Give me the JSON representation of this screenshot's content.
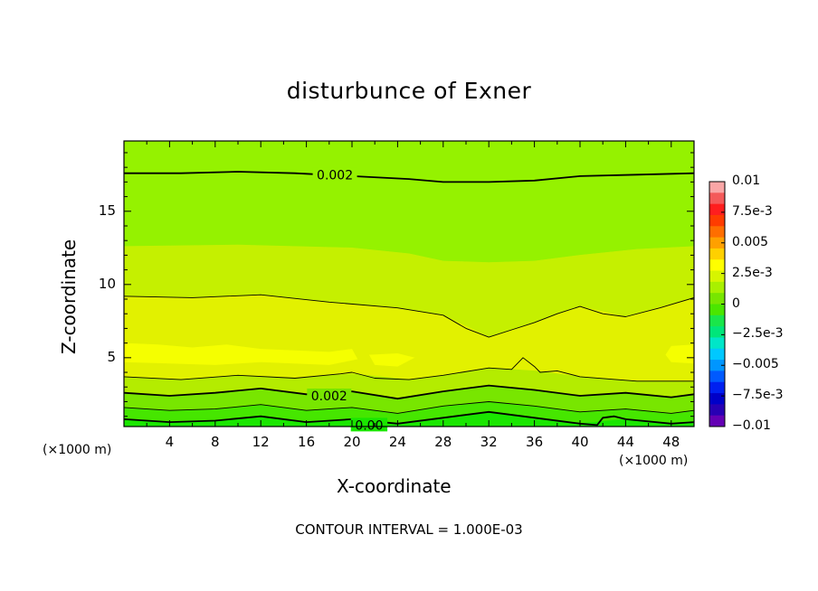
{
  "chart_data": {
    "type": "heatmap",
    "subtype": "filled-contour",
    "title": "disturbunce of Exner",
    "xlabel": "X-coordinate",
    "ylabel": "Z-coordinate",
    "x_unit_label": "(×1000 m)",
    "xlim": [
      0,
      50
    ],
    "ylim": [
      0.3,
      19.8
    ],
    "xticks": [
      "4",
      "8",
      "12",
      "16",
      "20",
      "24",
      "28",
      "32",
      "36",
      "40",
      "44",
      "48"
    ],
    "xtick_values": [
      4,
      8,
      12,
      16,
      20,
      24,
      28,
      32,
      36,
      40,
      44,
      48
    ],
    "yticks": [
      "5",
      "10",
      "15"
    ],
    "ytick_values": [
      5,
      10,
      15
    ],
    "contour_interval_text": "CONTOUR INTERVAL = 1.000E-03",
    "contour_labels": [
      {
        "text": "0.002",
        "x": 18.5,
        "z": 17.5
      },
      {
        "text": "0.002",
        "x": 18,
        "z": 2.4
      },
      {
        "text": "0.00",
        "x": 21.5,
        "z": 0.4
      }
    ],
    "colorbar": {
      "min": -0.01,
      "max": 0.01,
      "labels": [
        "0.01",
        "7.5e-3",
        "0.005",
        "2.5e-3",
        "0",
        "−2.5e-3",
        "−0.005",
        "−7.5e-3",
        "−0.01"
      ],
      "colors": [
        "#f9a6a6",
        "#f45a5a",
        "#ff1e1e",
        "#ff3c00",
        "#ff6e00",
        "#ffa000",
        "#ffd000",
        "#ffff00",
        "#d7f500",
        "#a9f000",
        "#78e600",
        "#4be600",
        "#1ae64a",
        "#00e67a",
        "#00e6c8",
        "#00c8ff",
        "#0096ff",
        "#005aff",
        "#0020f0",
        "#0000c8",
        "#2800b4",
        "#6400b4"
      ]
    },
    "bands": [
      {
        "color": "#95f200",
        "top": [
          [
            0,
            19.8
          ],
          [
            50,
            19.8
          ]
        ],
        "bottom": [
          [
            0,
            12.6
          ],
          [
            10,
            12.7
          ],
          [
            20,
            12.5
          ],
          [
            25,
            12.1
          ],
          [
            28,
            11.6
          ],
          [
            32,
            11.5
          ],
          [
            36,
            11.6
          ],
          [
            40,
            12.0
          ],
          [
            45,
            12.4
          ],
          [
            50,
            12.6
          ]
        ]
      },
      {
        "color": "#c5f000",
        "top": [
          [
            0,
            12.6
          ],
          [
            10,
            12.7
          ],
          [
            20,
            12.5
          ],
          [
            25,
            12.1
          ],
          [
            28,
            11.6
          ],
          [
            32,
            11.5
          ],
          [
            36,
            11.6
          ],
          [
            40,
            12.0
          ],
          [
            45,
            12.4
          ],
          [
            50,
            12.6
          ]
        ],
        "bottom": [
          [
            0,
            9.2
          ],
          [
            6,
            9.1
          ],
          [
            12,
            9.3
          ],
          [
            18,
            8.8
          ],
          [
            24,
            8.4
          ],
          [
            28,
            7.9
          ],
          [
            32,
            6.4
          ],
          [
            36,
            7.4
          ],
          [
            40,
            8.5
          ],
          [
            44,
            7.8
          ],
          [
            50,
            9.1
          ]
        ]
      },
      {
        "color": "#e2f100",
        "top": [
          [
            0,
            9.2
          ],
          [
            6,
            9.1
          ],
          [
            12,
            9.3
          ],
          [
            18,
            8.8
          ],
          [
            24,
            8.4
          ],
          [
            28,
            7.9
          ],
          [
            32,
            6.4
          ],
          [
            36,
            7.4
          ],
          [
            40,
            8.5
          ],
          [
            44,
            7.8
          ],
          [
            50,
            9.1
          ]
        ],
        "bottom": [
          [
            0,
            3.7
          ],
          [
            5,
            3.5
          ],
          [
            10,
            3.8
          ],
          [
            15,
            3.6
          ],
          [
            20,
            3.9
          ],
          [
            25,
            3.5
          ],
          [
            28,
            3.8
          ],
          [
            32,
            4.3
          ],
          [
            36,
            4.1
          ],
          [
            40,
            3.7
          ],
          [
            45,
            3.4
          ],
          [
            50,
            3.4
          ]
        ]
      },
      {
        "color": "#b4ec00",
        "top": [
          [
            0,
            3.7
          ],
          [
            5,
            3.5
          ],
          [
            10,
            3.8
          ],
          [
            15,
            3.6
          ],
          [
            20,
            3.9
          ],
          [
            25,
            3.5
          ],
          [
            28,
            3.8
          ],
          [
            32,
            4.3
          ],
          [
            36,
            4.1
          ],
          [
            40,
            3.7
          ],
          [
            45,
            3.4
          ],
          [
            50,
            3.4
          ]
        ],
        "bottom": [
          [
            0,
            2.6
          ],
          [
            4,
            2.4
          ],
          [
            8,
            2.6
          ],
          [
            12,
            2.9
          ],
          [
            16,
            2.5
          ],
          [
            20,
            2.7
          ],
          [
            24,
            2.2
          ],
          [
            28,
            2.7
          ],
          [
            32,
            3.1
          ],
          [
            36,
            2.8
          ],
          [
            40,
            2.4
          ],
          [
            44,
            2.6
          ],
          [
            48,
            2.3
          ],
          [
            50,
            2.5
          ]
        ]
      },
      {
        "color": "#78e600",
        "top": [
          [
            0,
            2.6
          ],
          [
            4,
            2.4
          ],
          [
            8,
            2.6
          ],
          [
            12,
            2.9
          ],
          [
            16,
            2.5
          ],
          [
            20,
            2.7
          ],
          [
            24,
            2.2
          ],
          [
            28,
            2.7
          ],
          [
            32,
            3.1
          ],
          [
            36,
            2.8
          ],
          [
            40,
            2.4
          ],
          [
            44,
            2.6
          ],
          [
            48,
            2.3
          ],
          [
            50,
            2.5
          ]
        ],
        "bottom": [
          [
            0,
            1.6
          ],
          [
            4,
            1.4
          ],
          [
            8,
            1.5
          ],
          [
            12,
            1.8
          ],
          [
            16,
            1.4
          ],
          [
            20,
            1.6
          ],
          [
            24,
            1.2
          ],
          [
            28,
            1.7
          ],
          [
            32,
            2.0
          ],
          [
            36,
            1.7
          ],
          [
            40,
            1.3
          ],
          [
            44,
            1.5
          ],
          [
            48,
            1.2
          ],
          [
            50,
            1.4
          ]
        ]
      },
      {
        "color": "#46e600",
        "top": [
          [
            0,
            1.6
          ],
          [
            4,
            1.4
          ],
          [
            8,
            1.5
          ],
          [
            12,
            1.8
          ],
          [
            16,
            1.4
          ],
          [
            20,
            1.6
          ],
          [
            24,
            1.2
          ],
          [
            28,
            1.7
          ],
          [
            32,
            2.0
          ],
          [
            36,
            1.7
          ],
          [
            40,
            1.3
          ],
          [
            44,
            1.5
          ],
          [
            48,
            1.2
          ],
          [
            50,
            1.4
          ]
        ],
        "bottom": [
          [
            0,
            0.8
          ],
          [
            4,
            0.6
          ],
          [
            8,
            0.7
          ],
          [
            12,
            1.0
          ],
          [
            16,
            0.6
          ],
          [
            20,
            0.8
          ],
          [
            24,
            0.5
          ],
          [
            28,
            0.9
          ],
          [
            32,
            1.3
          ],
          [
            36,
            0.9
          ],
          [
            40,
            0.5
          ],
          [
            44,
            0.8
          ],
          [
            48,
            0.5
          ],
          [
            50,
            0.6
          ]
        ]
      },
      {
        "color": "#1ae600",
        "top": [
          [
            0,
            0.8
          ],
          [
            4,
            0.6
          ],
          [
            8,
            0.7
          ],
          [
            12,
            1.0
          ],
          [
            16,
            0.6
          ],
          [
            20,
            0.8
          ],
          [
            24,
            0.5
          ],
          [
            28,
            0.9
          ],
          [
            32,
            1.3
          ],
          [
            36,
            0.9
          ],
          [
            40,
            0.5
          ],
          [
            44,
            0.8
          ],
          [
            48,
            0.5
          ],
          [
            50,
            0.6
          ]
        ],
        "bottom": [
          [
            0,
            0.3
          ],
          [
            50,
            0.3
          ]
        ]
      }
    ],
    "yellow_patches": [
      {
        "color": "#f5ff00",
        "points": [
          [
            0,
            6.0
          ],
          [
            3,
            5.9
          ],
          [
            6,
            5.7
          ],
          [
            9,
            5.9
          ],
          [
            12,
            5.6
          ],
          [
            18,
            5.4
          ],
          [
            20,
            5.6
          ],
          [
            20.5,
            4.9
          ],
          [
            18,
            4.5
          ],
          [
            12,
            4.7
          ],
          [
            8,
            4.5
          ],
          [
            4,
            4.6
          ],
          [
            0,
            4.7
          ]
        ]
      },
      {
        "color": "#f5ff00",
        "points": [
          [
            21.5,
            5.2
          ],
          [
            24,
            5.3
          ],
          [
            25.5,
            5.0
          ],
          [
            24,
            4.4
          ],
          [
            22,
            4.5
          ]
        ]
      },
      {
        "color": "#f5ff00",
        "points": [
          [
            48,
            5.8
          ],
          [
            50,
            5.9
          ],
          [
            50,
            4.6
          ],
          [
            48,
            4.7
          ],
          [
            47.5,
            5.2
          ]
        ]
      }
    ],
    "contour_lines": [
      {
        "weight": "thick",
        "points": [
          [
            0,
            17.6
          ],
          [
            5,
            17.6
          ],
          [
            10,
            17.7
          ],
          [
            15,
            17.6
          ],
          [
            20,
            17.4
          ],
          [
            25,
            17.2
          ],
          [
            28,
            17.0
          ],
          [
            32,
            17.0
          ],
          [
            36,
            17.1
          ],
          [
            40,
            17.4
          ],
          [
            45,
            17.5
          ],
          [
            50,
            17.6
          ]
        ]
      },
      {
        "weight": "thin",
        "points": [
          [
            0,
            9.2
          ],
          [
            6,
            9.1
          ],
          [
            12,
            9.3
          ],
          [
            18,
            8.8
          ],
          [
            24,
            8.4
          ],
          [
            28,
            7.9
          ],
          [
            30,
            7.0
          ],
          [
            32,
            6.4
          ],
          [
            34,
            6.9
          ],
          [
            36,
            7.4
          ],
          [
            38,
            8.0
          ],
          [
            40,
            8.5
          ],
          [
            42,
            8.0
          ],
          [
            44,
            7.8
          ],
          [
            47,
            8.4
          ],
          [
            50,
            9.1
          ]
        ]
      },
      {
        "weight": "thin",
        "points": [
          [
            0,
            3.7
          ],
          [
            5,
            3.5
          ],
          [
            10,
            3.8
          ],
          [
            15,
            3.6
          ],
          [
            19,
            3.9
          ],
          [
            20,
            4.0
          ],
          [
            22,
            3.6
          ],
          [
            25,
            3.5
          ],
          [
            28,
            3.8
          ],
          [
            32,
            4.3
          ],
          [
            34,
            4.2
          ],
          [
            35,
            5.0
          ],
          [
            36,
            4.4
          ],
          [
            36.5,
            4.0
          ],
          [
            38,
            4.1
          ],
          [
            40,
            3.7
          ],
          [
            45,
            3.4
          ],
          [
            50,
            3.4
          ]
        ]
      },
      {
        "weight": "thick",
        "points": [
          [
            0,
            2.6
          ],
          [
            4,
            2.4
          ],
          [
            8,
            2.6
          ],
          [
            12,
            2.9
          ],
          [
            16,
            2.5
          ],
          [
            20,
            2.7
          ],
          [
            24,
            2.2
          ],
          [
            28,
            2.7
          ],
          [
            32,
            3.1
          ],
          [
            36,
            2.8
          ],
          [
            40,
            2.4
          ],
          [
            44,
            2.6
          ],
          [
            48,
            2.3
          ],
          [
            50,
            2.5
          ]
        ]
      },
      {
        "weight": "thin",
        "points": [
          [
            0,
            1.6
          ],
          [
            4,
            1.4
          ],
          [
            8,
            1.5
          ],
          [
            12,
            1.8
          ],
          [
            16,
            1.4
          ],
          [
            20,
            1.6
          ],
          [
            24,
            1.2
          ],
          [
            28,
            1.7
          ],
          [
            32,
            2.0
          ],
          [
            36,
            1.7
          ],
          [
            40,
            1.3
          ],
          [
            44,
            1.5
          ],
          [
            48,
            1.2
          ],
          [
            50,
            1.4
          ]
        ]
      },
      {
        "weight": "thick",
        "points": [
          [
            0,
            0.8
          ],
          [
            4,
            0.6
          ],
          [
            8,
            0.7
          ],
          [
            12,
            1.0
          ],
          [
            16,
            0.6
          ],
          [
            20,
            0.8
          ],
          [
            24,
            0.5
          ],
          [
            28,
            0.9
          ],
          [
            32,
            1.3
          ],
          [
            36,
            0.9
          ],
          [
            40,
            0.5
          ],
          [
            41.5,
            0.4
          ],
          [
            42,
            0.9
          ],
          [
            43,
            1.0
          ],
          [
            44,
            0.8
          ],
          [
            48,
            0.5
          ],
          [
            50,
            0.6
          ]
        ]
      }
    ]
  }
}
